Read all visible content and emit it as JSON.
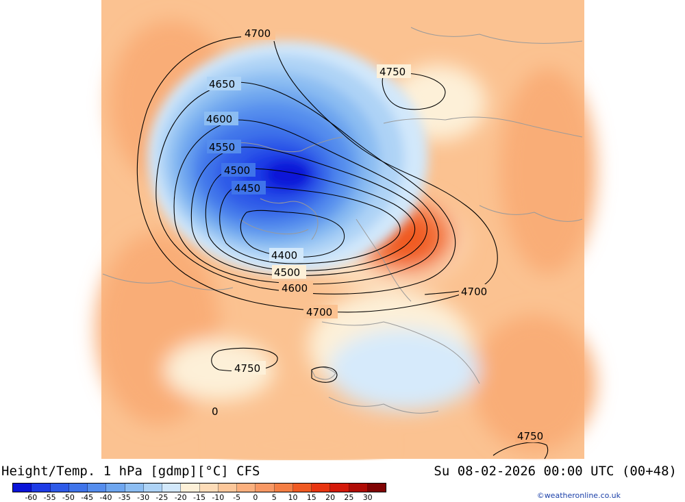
{
  "title_left": "Height/Temp. 1 hPa [gdmp][°C] CFS",
  "title_right": "Su 08-02-2026 00:00 UTC (00+48)",
  "credit": "©weatheronline.co.uk",
  "contour_labels": [
    {
      "id": "c4700a",
      "text": "4700"
    },
    {
      "id": "c4750a",
      "text": "4750"
    },
    {
      "id": "c4650",
      "text": "4650"
    },
    {
      "id": "c4600a",
      "text": "4600"
    },
    {
      "id": "c4550",
      "text": "4550"
    },
    {
      "id": "c4500a",
      "text": "4500"
    },
    {
      "id": "c4450",
      "text": "4450"
    },
    {
      "id": "c4400",
      "text": "4400"
    },
    {
      "id": "c4500b",
      "text": "4500"
    },
    {
      "id": "c4600b",
      "text": "4600"
    },
    {
      "id": "c4700b",
      "text": "4700"
    },
    {
      "id": "c4700c",
      "text": "4700"
    },
    {
      "id": "c4750b",
      "text": "4750"
    },
    {
      "id": "c4750c",
      "text": "4750"
    },
    {
      "id": "c0",
      "text": "0"
    }
  ],
  "colorbar": {
    "ticks": [
      "-60",
      "-55",
      "-50",
      "-45",
      "-40",
      "-35",
      "-30",
      "-25",
      "-20",
      "-15",
      "-10",
      "-5",
      "0",
      "5",
      "10",
      "15",
      "20",
      "25",
      "30"
    ],
    "colors": [
      "#0a14d8",
      "#1e3ce6",
      "#2e5ae8",
      "#3f74ea",
      "#558ded",
      "#6ea6ef",
      "#8cbdf2",
      "#aed3f6",
      "#d2e8fb",
      "#fdf0d8",
      "#fddcb8",
      "#fcc79a",
      "#fbb07e",
      "#f89864",
      "#f47e44",
      "#f05a22",
      "#e83510",
      "#d41a0a",
      "#b00c06",
      "#800404"
    ]
  }
}
